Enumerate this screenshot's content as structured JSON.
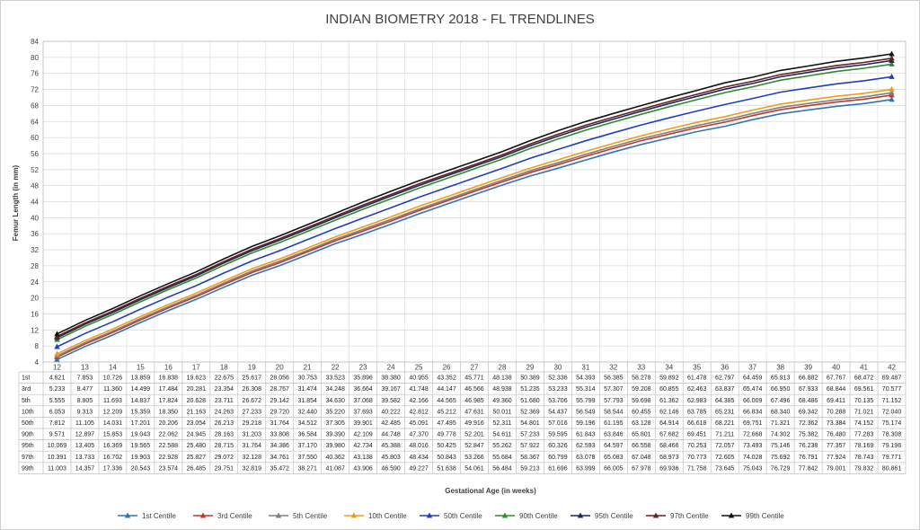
{
  "chart_data": {
    "type": "line",
    "title": "INDIAN BIOMETRY 2018 - FL TRENDLINES",
    "xlabel": "Gestational Age (in weeks)",
    "ylabel": "Femur Length (in mm)",
    "ylim": [
      4,
      84
    ],
    "yticks": [
      4,
      8,
      12,
      16,
      20,
      24,
      28,
      32,
      36,
      40,
      44,
      48,
      52,
      56,
      60,
      64,
      68,
      72,
      76,
      80,
      84
    ],
    "x": [
      12,
      13,
      14,
      15,
      16,
      17,
      18,
      19,
      20,
      21,
      22,
      23,
      24,
      25,
      26,
      27,
      28,
      29,
      30,
      31,
      32,
      33,
      34,
      35,
      36,
      37,
      38,
      39,
      40,
      41,
      42
    ],
    "grid": true,
    "legend_position": "bottom",
    "data_table": true,
    "series": [
      {
        "name": "1st Centile",
        "row_label": "1st",
        "color": "#2e75b6",
        "values": [
          4.621,
          7.853,
          10.726,
          13.859,
          16.838,
          19.623,
          22.675,
          25.617,
          28.056,
          30.753,
          33.523,
          35.896,
          38.38,
          40.955,
          43.352,
          45.771,
          48.138,
          50.389,
          52.336,
          54.393,
          56.385,
          58.278,
          59.892,
          61.478,
          62.797,
          64.459,
          65.913,
          66.882,
          67.767,
          68.472,
          69.487
        ]
      },
      {
        "name": "3rd Centile",
        "row_label": "3rd",
        "color": "#c0392b",
        "values": [
          5.233,
          8.477,
          11.36,
          14.499,
          17.484,
          20.281,
          23.354,
          26.308,
          28.767,
          31.474,
          34.248,
          36.664,
          39.167,
          41.748,
          44.147,
          46.566,
          48.938,
          51.235,
          53.233,
          55.314,
          57.307,
          59.208,
          60.855,
          62.463,
          63.837,
          65.474,
          66.95,
          67.933,
          68.844,
          69.561,
          70.577
        ]
      },
      {
        "name": "5th Centile",
        "row_label": "5th",
        "color": "#808080",
        "values": [
          5.555,
          8.805,
          11.693,
          14.837,
          17.824,
          20.628,
          23.711,
          26.672,
          29.142,
          31.854,
          34.63,
          37.068,
          39.582,
          42.166,
          44.565,
          46.985,
          49.36,
          51.68,
          53.706,
          55.799,
          57.793,
          59.698,
          61.362,
          62.983,
          64.385,
          66.009,
          67.496,
          68.486,
          69.411,
          70.135,
          71.152
        ]
      },
      {
        "name": "10th Centile",
        "row_label": "10th",
        "color": "#f39c12",
        "values": [
          6.053,
          9.313,
          12.209,
          15.359,
          18.35,
          21.163,
          24.263,
          27.233,
          29.72,
          32.44,
          35.22,
          37.693,
          40.222,
          42.812,
          45.212,
          47.631,
          50.011,
          52.369,
          54.437,
          56.549,
          58.544,
          60.455,
          62.146,
          63.785,
          65.231,
          66.834,
          68.34,
          69.342,
          70.288,
          71.021,
          72.04
        ]
      },
      {
        "name": "50th Centile",
        "row_label": "50th",
        "color": "#1f3fbf",
        "values": [
          7.812,
          11.105,
          14.031,
          17.201,
          20.206,
          23.054,
          26.213,
          29.218,
          31.764,
          34.512,
          37.305,
          39.901,
          42.485,
          45.091,
          47.495,
          49.916,
          52.311,
          54.801,
          57.016,
          59.196,
          61.195,
          63.128,
          64.914,
          66.618,
          68.221,
          69.751,
          71.321,
          72.362,
          73.384,
          74.152,
          75.174
        ]
      },
      {
        "name": "90th Centile",
        "row_label": "90th",
        "color": "#2e8b2e",
        "values": [
          9.571,
          12.897,
          15.853,
          19.043,
          22.062,
          24.945,
          28.163,
          31.203,
          33.808,
          36.584,
          39.39,
          42.109,
          44.748,
          47.37,
          49.778,
          52.201,
          54.611,
          57.233,
          59.595,
          61.843,
          63.846,
          65.801,
          67.682,
          69.451,
          71.211,
          72.668,
          74.302,
          75.382,
          76.48,
          77.283,
          78.308
        ]
      },
      {
        "name": "95th Centile",
        "row_label": "95th",
        "color": "#1b2a5a",
        "values": [
          10.069,
          13.405,
          16.369,
          19.565,
          22.588,
          25.48,
          28.715,
          31.764,
          34.386,
          37.17,
          39.98,
          42.734,
          45.388,
          48.016,
          50.425,
          52.847,
          55.262,
          57.922,
          60.326,
          62.593,
          64.597,
          66.558,
          68.466,
          70.253,
          72.057,
          73.493,
          75.146,
          76.238,
          77.357,
          78.169,
          79.196
        ]
      },
      {
        "name": "97th Centile",
        "row_label": "97th",
        "color": "#6b1f1f",
        "values": [
          10.391,
          13.733,
          16.702,
          19.903,
          22.928,
          25.827,
          29.072,
          32.128,
          34.761,
          37.55,
          40.362,
          43.138,
          45.803,
          48.434,
          50.843,
          53.266,
          55.684,
          58.367,
          60.799,
          63.078,
          65.083,
          67.048,
          68.973,
          70.773,
          72.605,
          74.028,
          75.692,
          76.791,
          77.924,
          78.743,
          79.771
        ]
      },
      {
        "name": "99th Centile",
        "row_label": "99th",
        "color": "#111111",
        "values": [
          11.003,
          14.357,
          17.336,
          20.543,
          23.574,
          26.485,
          29.751,
          32.819,
          35.472,
          38.271,
          41.087,
          43.906,
          46.59,
          49.227,
          51.638,
          54.061,
          56.484,
          59.213,
          61.696,
          63.999,
          66.005,
          67.978,
          69.936,
          71.758,
          73.645,
          75.043,
          76.729,
          77.842,
          79.001,
          79.832,
          80.861
        ]
      }
    ]
  }
}
